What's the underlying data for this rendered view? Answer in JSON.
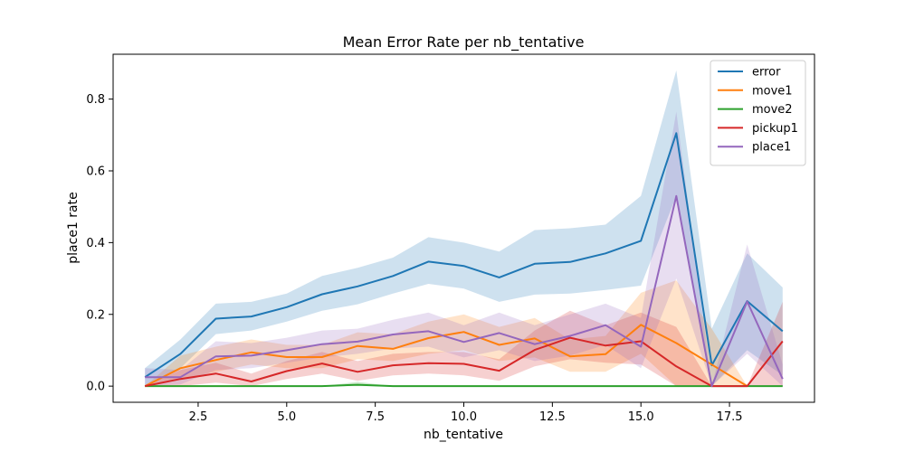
{
  "chart_data": {
    "type": "line",
    "title": "Mean Error Rate per nb_tentative",
    "xlabel": "nb_tentative",
    "ylabel": "place1 rate",
    "xlim": [
      0.1,
      19.9
    ],
    "ylim": [
      -0.045,
      0.925
    ],
    "xticks": [
      2.5,
      5.0,
      7.5,
      10.0,
      12.5,
      15.0,
      17.5
    ],
    "xtick_labels": [
      "2.5",
      "5.0",
      "7.5",
      "10.0",
      "12.5",
      "15.0",
      "17.5"
    ],
    "yticks": [
      0.0,
      0.2,
      0.4,
      0.6,
      0.8
    ],
    "ytick_labels": [
      "0.0",
      "0.2",
      "0.4",
      "0.6",
      "0.8"
    ],
    "grid": false,
    "legend_position": "top-right",
    "x": [
      1,
      2,
      3,
      4,
      5,
      6,
      7,
      8,
      9,
      10,
      11,
      12,
      13,
      14,
      15,
      16,
      17,
      18,
      19
    ],
    "series": [
      {
        "name": "error",
        "color": "#1f77b4",
        "values": [
          0.025,
          0.09,
          0.188,
          0.194,
          0.22,
          0.256,
          0.278,
          0.307,
          0.347,
          0.335,
          0.303,
          0.341,
          0.346,
          0.37,
          0.405,
          0.705,
          0.058,
          0.237,
          0.153
        ],
        "lower": [
          0.0,
          0.05,
          0.145,
          0.155,
          0.18,
          0.21,
          0.228,
          0.258,
          0.285,
          0.272,
          0.235,
          0.255,
          0.258,
          0.268,
          0.28,
          0.53,
          0.0,
          0.1,
          0.03
        ],
        "upper": [
          0.05,
          0.13,
          0.23,
          0.235,
          0.258,
          0.307,
          0.33,
          0.358,
          0.415,
          0.4,
          0.375,
          0.435,
          0.44,
          0.45,
          0.53,
          0.88,
          0.16,
          0.37,
          0.275
        ]
      },
      {
        "name": "move1",
        "color": "#ff7f0e",
        "values": [
          0.0,
          0.05,
          0.073,
          0.094,
          0.081,
          0.081,
          0.112,
          0.104,
          0.134,
          0.151,
          0.115,
          0.133,
          0.083,
          0.089,
          0.171,
          0.12,
          0.06,
          0.0,
          null
        ],
        "lower": [
          0.0,
          0.02,
          0.04,
          0.06,
          0.05,
          0.05,
          0.075,
          0.07,
          0.09,
          0.1,
          0.07,
          0.08,
          0.04,
          0.04,
          0.09,
          0.0,
          0.0,
          0.0,
          null
        ],
        "upper": [
          0.0,
          0.085,
          0.11,
          0.13,
          0.115,
          0.115,
          0.15,
          0.145,
          0.18,
          0.2,
          0.165,
          0.19,
          0.13,
          0.14,
          0.26,
          0.295,
          0.16,
          0.0,
          null
        ]
      },
      {
        "name": "move2",
        "color": "#2ca02c",
        "values": [
          0.0,
          0.0,
          0.0,
          0.0,
          0.0,
          0.0,
          0.004,
          0.0,
          0.0,
          0.0,
          0.0,
          0.0,
          0.0,
          0.0,
          0.0,
          0.0,
          0.0,
          0.0,
          0.0
        ],
        "lower": [
          0.0,
          0.0,
          0.0,
          0.0,
          0.0,
          0.0,
          0.0,
          0.0,
          0.0,
          0.0,
          0.0,
          0.0,
          0.0,
          0.0,
          0.0,
          0.0,
          0.0,
          0.0,
          0.0
        ],
        "upper": [
          0.0,
          0.0,
          0.0,
          0.0,
          0.0,
          0.0,
          0.012,
          0.0,
          0.0,
          0.0,
          0.0,
          0.0,
          0.0,
          0.0,
          0.0,
          0.0,
          0.0,
          0.0,
          0.0
        ]
      },
      {
        "name": "pickup1",
        "color": "#d62728",
        "values": [
          0.0,
          0.02,
          0.035,
          0.013,
          0.042,
          0.063,
          0.04,
          0.058,
          0.064,
          0.062,
          0.043,
          0.101,
          0.135,
          0.113,
          0.125,
          0.055,
          0.0,
          0.0,
          0.125
        ],
        "lower": [
          0.0,
          0.0,
          0.01,
          0.0,
          0.02,
          0.035,
          0.015,
          0.03,
          0.035,
          0.03,
          0.015,
          0.055,
          0.075,
          0.065,
          0.06,
          0.0,
          0.0,
          0.0,
          0.0
        ],
        "upper": [
          0.0,
          0.045,
          0.065,
          0.035,
          0.07,
          0.095,
          0.07,
          0.09,
          0.095,
          0.095,
          0.075,
          0.155,
          0.21,
          0.17,
          0.205,
          0.165,
          0.0,
          0.0,
          0.235
        ]
      },
      {
        "name": "place1",
        "color": "#9467bd",
        "values": [
          0.025,
          0.025,
          0.083,
          0.085,
          0.1,
          0.117,
          0.124,
          0.144,
          0.153,
          0.123,
          0.148,
          0.117,
          0.14,
          0.17,
          0.11,
          0.53,
          0.0,
          0.236,
          0.02
        ],
        "lower": [
          0.0,
          0.005,
          0.045,
          0.05,
          0.065,
          0.08,
          0.09,
          0.105,
          0.11,
          0.08,
          0.1,
          0.07,
          0.085,
          0.115,
          0.05,
          0.3,
          0.0,
          0.09,
          0.0
        ],
        "upper": [
          0.05,
          0.045,
          0.125,
          0.12,
          0.135,
          0.155,
          0.16,
          0.185,
          0.205,
          0.17,
          0.205,
          0.17,
          0.2,
          0.23,
          0.19,
          0.765,
          0.0,
          0.395,
          0.06
        ]
      }
    ]
  }
}
